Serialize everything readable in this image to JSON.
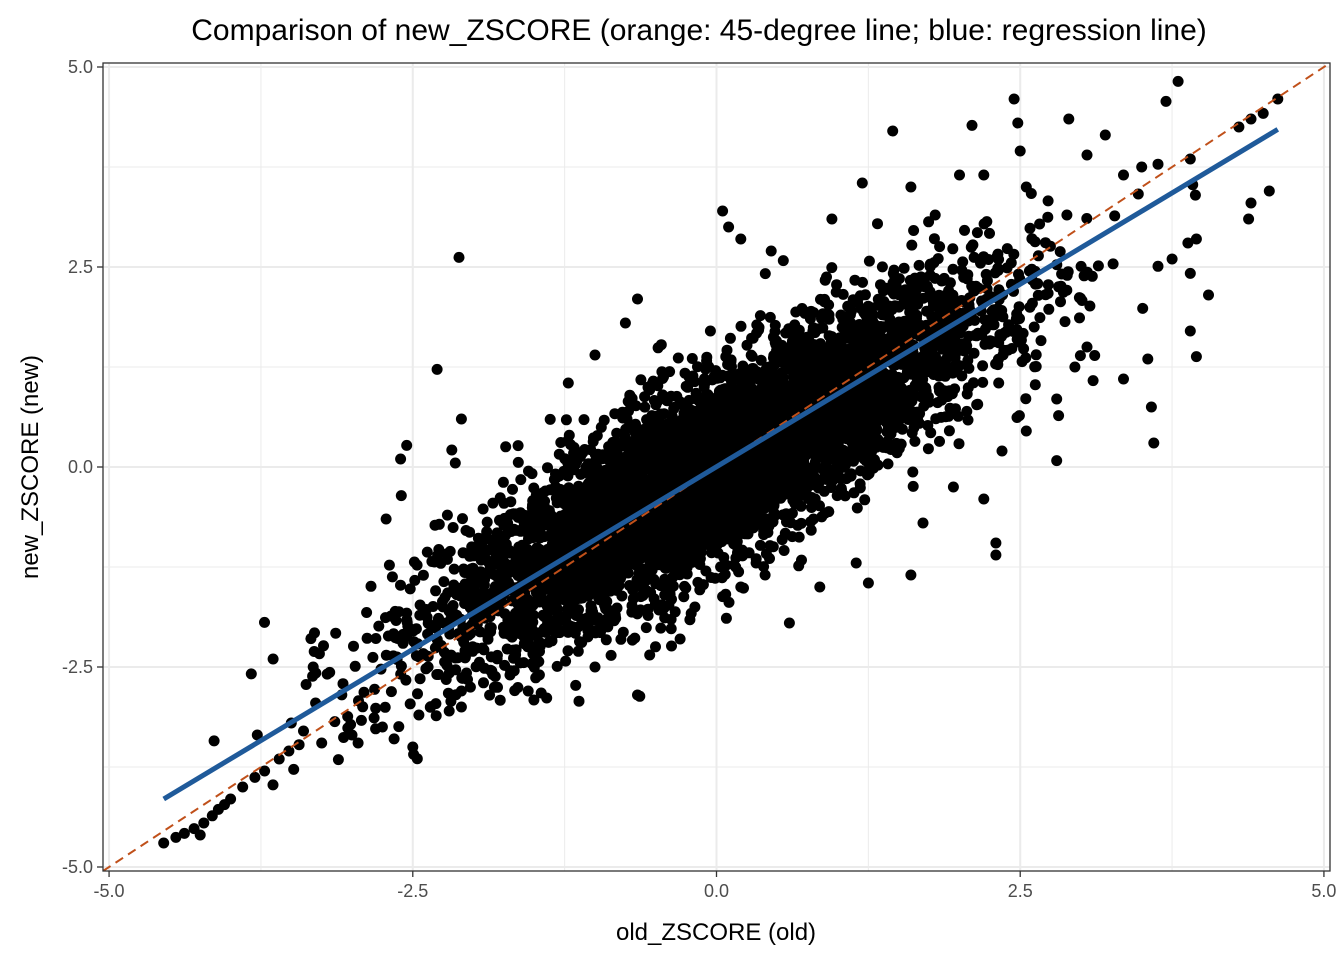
{
  "chart_data": {
    "type": "scatter",
    "title": "Comparison of new_ZSCORE (orange: 45-degree line; blue: regression line)",
    "xlabel": "old_ZSCORE (old)",
    "ylabel": "new_ZSCORE (new)",
    "xlim": [
      -5.05,
      5.05
    ],
    "ylim": [
      -5.05,
      5.05
    ],
    "xticks": [
      -5.0,
      -2.5,
      0.0,
      2.5,
      5.0
    ],
    "yticks": [
      -5.0,
      -2.5,
      0.0,
      2.5,
      5.0
    ],
    "xtick_labels": [
      "-5.0",
      "-2.5",
      "0.0",
      "2.5",
      "5.0"
    ],
    "ytick_labels": [
      "-5.0",
      "-2.5",
      "0.0",
      "2.5",
      "5.0"
    ],
    "grid": true,
    "legend": "none",
    "colors": {
      "points": "#000000",
      "reference_line": "#C0501A",
      "regression_line": "#1F5A9A",
      "grid": "#EBEBEB",
      "panel_border": "#333333"
    },
    "reference_line": {
      "label": "45-degree line",
      "slope": 1,
      "intercept": 0,
      "style": "dashed"
    },
    "regression_line": {
      "label": "regression line",
      "x": [
        -4.55,
        4.62
      ],
      "y": [
        -4.15,
        4.22
      ]
    },
    "bulk_distribution": {
      "n_points": 6000,
      "correlation": 0.85,
      "x_mean": 0.0,
      "x_sd": 1.1
    },
    "points": [
      [
        -4.55,
        -4.7
      ],
      [
        -4.45,
        -4.63
      ],
      [
        -4.38,
        -4.58
      ],
      [
        -4.3,
        -4.52
      ],
      [
        -4.22,
        -4.45
      ],
      [
        -4.15,
        -4.36
      ],
      [
        -4.1,
        -4.28
      ],
      [
        -4.05,
        -4.22
      ],
      [
        -4.25,
        -4.6
      ],
      [
        -4.0,
        -4.15
      ],
      [
        -3.9,
        -4.0
      ],
      [
        -3.8,
        -3.88
      ],
      [
        -3.72,
        -3.8
      ],
      [
        -3.6,
        -3.65
      ],
      [
        -3.52,
        -3.55
      ],
      [
        -3.78,
        -3.35
      ],
      [
        -3.5,
        -3.2
      ],
      [
        -3.4,
        -3.3
      ],
      [
        -3.3,
        -2.95
      ],
      [
        -3.32,
        -2.5
      ],
      [
        -3.65,
        -2.4
      ],
      [
        -3.48,
        -3.78
      ],
      [
        -3.25,
        -3.45
      ],
      [
        -2.72,
        -0.65
      ],
      [
        -2.55,
        0.27
      ],
      [
        -2.6,
        0.1
      ],
      [
        -2.12,
        2.62
      ],
      [
        -2.3,
        1.22
      ],
      [
        -2.1,
        0.6
      ],
      [
        -2.15,
        0.05
      ],
      [
        -1.22,
        1.05
      ],
      [
        -1.0,
        1.4
      ],
      [
        -0.75,
        1.8
      ],
      [
        -0.65,
        2.1
      ],
      [
        -0.05,
        1.7
      ],
      [
        0.05,
        3.2
      ],
      [
        0.1,
        3.0
      ],
      [
        0.2,
        2.85
      ],
      [
        0.45,
        2.7
      ],
      [
        0.55,
        2.58
      ],
      [
        0.95,
        3.1
      ],
      [
        1.2,
        3.55
      ],
      [
        1.45,
        4.2
      ],
      [
        1.6,
        3.5
      ],
      [
        1.8,
        3.15
      ],
      [
        2.0,
        3.65
      ],
      [
        2.2,
        3.65
      ],
      [
        2.45,
        4.6
      ],
      [
        2.48,
        4.3
      ],
      [
        2.5,
        3.95
      ],
      [
        2.55,
        3.5
      ],
      [
        2.9,
        4.35
      ],
      [
        3.2,
        4.15
      ],
      [
        3.05,
        3.9
      ],
      [
        3.35,
        3.65
      ],
      [
        3.5,
        3.75
      ],
      [
        3.8,
        4.82
      ],
      [
        3.7,
        4.57
      ],
      [
        3.9,
        3.85
      ],
      [
        4.4,
        4.35
      ],
      [
        4.5,
        4.42
      ],
      [
        4.62,
        4.6
      ],
      [
        4.3,
        4.25
      ],
      [
        4.55,
        3.45
      ],
      [
        4.4,
        3.3
      ],
      [
        4.38,
        3.1
      ],
      [
        4.05,
        2.15
      ],
      [
        3.9,
        2.42
      ],
      [
        3.88,
        2.8
      ],
      [
        3.95,
        2.85
      ],
      [
        3.9,
        1.7
      ],
      [
        3.95,
        1.38
      ],
      [
        3.75,
        2.6
      ],
      [
        3.55,
        1.35
      ],
      [
        3.58,
        0.75
      ],
      [
        3.6,
        0.3
      ],
      [
        3.35,
        1.1
      ],
      [
        3.1,
        1.08
      ],
      [
        2.95,
        1.25
      ],
      [
        3.05,
        1.5
      ],
      [
        2.8,
        0.85
      ],
      [
        2.8,
        0.08
      ],
      [
        2.55,
        0.45
      ],
      [
        2.35,
        0.2
      ],
      [
        2.2,
        -0.4
      ],
      [
        1.95,
        -0.25
      ],
      [
        1.6,
        -1.35
      ],
      [
        1.7,
        -0.7
      ],
      [
        2.3,
        -0.95
      ],
      [
        2.3,
        -1.1
      ],
      [
        1.15,
        -1.2
      ],
      [
        1.25,
        -1.45
      ],
      [
        0.85,
        -1.5
      ],
      [
        0.6,
        -1.95
      ],
      [
        0.4,
        -1.35
      ],
      [
        0.2,
        -1.5
      ],
      [
        0.05,
        -1.62
      ],
      [
        -0.3,
        -2.15
      ],
      [
        -0.55,
        -2.35
      ],
      [
        -0.65,
        -2.85
      ],
      [
        -1.0,
        -2.5
      ],
      [
        -1.55,
        -2.8
      ],
      [
        -1.85,
        -2.55
      ],
      [
        -2.1,
        -2.8
      ],
      [
        -2.2,
        -3.05
      ],
      [
        -2.45,
        -3.1
      ],
      [
        -2.5,
        -3.5
      ],
      [
        -2.75,
        -3.25
      ],
      [
        -2.95,
        -3.45
      ],
      [
        -3.0,
        -3.35
      ],
      [
        -2.1,
        -3.0
      ],
      [
        -1.7,
        -2.6
      ]
    ]
  }
}
